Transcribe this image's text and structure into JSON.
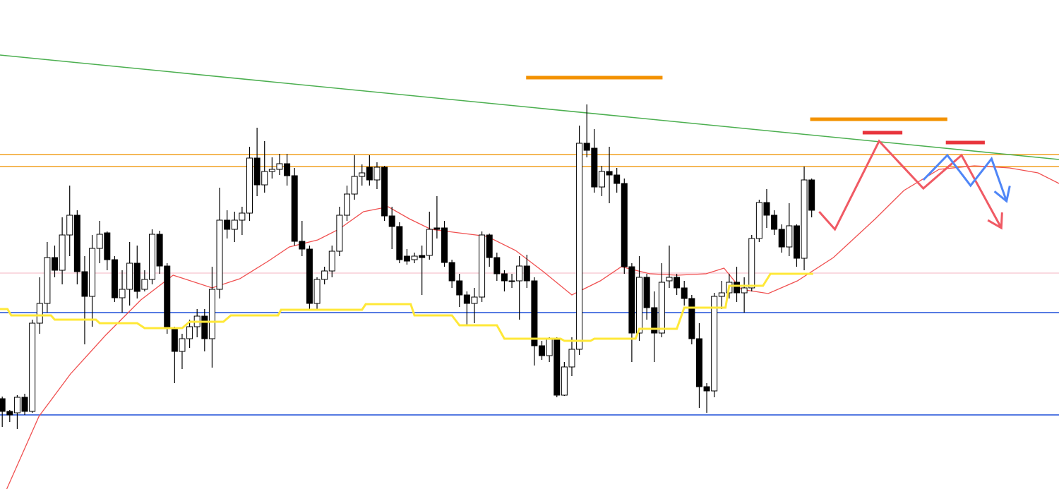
{
  "chart_data": {
    "type": "candlestick",
    "xlim": [
      -0.3,
      141
    ],
    "ylim": [
      0,
      693
    ],
    "up_color": "#ffffff",
    "down_color": "#000000",
    "edge_color": "#000000",
    "open": [
      128,
      110,
      108,
      130,
      110,
      235,
      263,
      328,
      310,
      360,
      388,
      308,
      273,
      341,
      363,
      325,
      271,
      283,
      320,
      283,
      297,
      361,
      316,
      227,
      195,
      213,
      230,
      245,
      213,
      283,
      381,
      368,
      381,
      391,
      469,
      431,
      450,
      453,
      461,
      444,
      351,
      340,
      263,
      297,
      309,
      337,
      388,
      418,
      443,
      456,
      438,
      456,
      387,
      372,
      330,
      325,
      331,
      331,
      370,
      370,
      321,
      295,
      275,
      263,
      272,
      360,
      328,
      305,
      294,
      295,
      316,
      295,
      203,
      189,
      213,
      133,
      173,
      198,
      490,
      483,
      428,
      450,
      445,
      433,
      315,
      221,
      300,
      257,
      221,
      295,
      300,
      285,
      270,
      213,
      145,
      139,
      273,
      278,
      293,
      278,
      285,
      355,
      406,
      388,
      368,
      343,
      373,
      327,
      438
    ],
    "high": [
      131,
      112,
      133,
      135,
      240,
      300,
      350,
      345,
      385,
      430,
      395,
      330,
      360,
      380,
      365,
      330,
      310,
      350,
      345,
      310,
      368,
      366,
      320,
      230,
      220,
      240,
      255,
      255,
      315,
      427,
      395,
      393,
      400,
      485,
      512,
      493,
      470,
      475,
      475,
      455,
      380,
      345,
      300,
      315,
      345,
      400,
      430,
      473,
      460,
      473,
      463,
      458,
      400,
      378,
      340,
      335,
      345,
      393,
      415,
      380,
      325,
      305,
      280,
      285,
      365,
      362,
      335,
      310,
      305,
      330,
      332,
      300,
      210,
      215,
      215,
      180,
      215,
      515,
      545,
      510,
      458,
      485,
      455,
      440,
      320,
      330,
      305,
      280,
      320,
      345,
      305,
      295,
      275,
      235,
      150,
      278,
      295,
      305,
      315,
      300,
      360,
      410,
      425,
      395,
      375,
      405,
      375,
      457,
      440
    ],
    "low": [
      88,
      95,
      85,
      105,
      108,
      220,
      250,
      300,
      290,
      330,
      290,
      205,
      230,
      320,
      310,
      265,
      250,
      260,
      270,
      280,
      290,
      305,
      220,
      150,
      170,
      200,
      215,
      195,
      172,
      270,
      355,
      350,
      360,
      380,
      415,
      420,
      440,
      445,
      430,
      345,
      330,
      255,
      255,
      290,
      300,
      330,
      380,
      410,
      430,
      430,
      425,
      380,
      340,
      320,
      318,
      320,
      275,
      325,
      355,
      315,
      285,
      258,
      233,
      235,
      265,
      315,
      295,
      280,
      285,
      240,
      285,
      175,
      183,
      180,
      130,
      132,
      160,
      190,
      470,
      420,
      415,
      405,
      420,
      305,
      180,
      210,
      240,
      180,
      215,
      285,
      275,
      260,
      205,
      115,
      108,
      130,
      255,
      270,
      265,
      250,
      280,
      350,
      370,
      360,
      335,
      330,
      315,
      310,
      385
    ],
    "close": [
      110,
      105,
      130,
      110,
      235,
      263,
      328,
      310,
      360,
      388,
      308,
      273,
      341,
      361,
      325,
      271,
      283,
      320,
      280,
      297,
      361,
      316,
      227,
      195,
      213,
      230,
      245,
      213,
      283,
      381,
      368,
      381,
      391,
      469,
      431,
      450,
      453,
      461,
      444,
      351,
      340,
      263,
      297,
      309,
      337,
      388,
      418,
      443,
      448,
      438,
      456,
      387,
      372,
      325,
      323,
      330,
      328,
      368,
      368,
      321,
      295,
      275,
      263,
      272,
      360,
      328,
      305,
      295,
      295,
      316,
      295,
      203,
      189,
      213,
      133,
      173,
      198,
      490,
      480,
      428,
      450,
      445,
      433,
      315,
      221,
      300,
      257,
      221,
      293,
      300,
      285,
      270,
      213,
      145,
      139,
      273,
      278,
      293,
      278,
      285,
      355,
      406,
      388,
      368,
      343,
      373,
      327,
      438,
      395
    ],
    "levels": [
      {
        "value": 474,
        "color": "#f0a020",
        "width": 1.5
      },
      {
        "value": 457,
        "color": "#f0a020",
        "width": 1.5
      },
      {
        "value": 306,
        "color": "#f4b6c2",
        "width": 1
      },
      {
        "value": 250,
        "color": "#1f4fd8",
        "width": 1.5
      },
      {
        "value": 105,
        "color": "#1f4fd8",
        "width": 1.5
      }
    ],
    "overlays": [
      {
        "x": [
          -0.3,
          141
        ],
        "values": [
          615,
          467
        ],
        "color": "#4caf50",
        "width": 1.5
      },
      {
        "x": [
          0.6,
          4.9,
          9.1,
          13.8,
          18.5,
          22.8,
          28,
          31.7,
          35.5,
          38.3,
          42.1,
          44.9,
          48.2,
          51.5,
          54.3,
          57.2,
          60.9,
          64.7,
          68.5,
          72.2,
          76,
          79.8,
          82.6,
          86.4,
          90.1,
          93.9,
          96.3,
          98.6,
          102.2,
          106.1,
          110.9,
          116.5,
          120.3,
          125,
          129.7,
          134.4,
          138.2,
          141
        ],
        "values": [
          0,
          103,
          163,
          218,
          268,
          303,
          285,
          298,
          323,
          343,
          353,
          368,
          393,
          400,
          383,
          368,
          363,
          358,
          338,
          308,
          275,
          295,
          315,
          305,
          303,
          305,
          313,
          283,
          277,
          295,
          328,
          383,
          423,
          453,
          458,
          455,
          448,
          433
        ],
        "color": "#f05050",
        "width": 1.3
      },
      {
        "x": [
          -0.3,
          0.7,
          1.2,
          6.5,
          7,
          12.5,
          13,
          18,
          19,
          24,
          25,
          29.5,
          30.5,
          36.8,
          37.2,
          48,
          48.5,
          54.5,
          55,
          60,
          61,
          66,
          67,
          74.5,
          75,
          78.5,
          79,
          84.5,
          85,
          90,
          91,
          96.5,
          97,
          101.5,
          102.5,
          108.2
        ],
        "values": [
          255,
          255,
          246,
          246,
          240,
          240,
          235,
          235,
          228,
          228,
          237,
          237,
          246,
          246,
          254,
          254,
          262,
          262,
          246,
          246,
          232,
          232,
          213,
          213,
          210,
          210,
          213,
          213,
          227,
          227,
          257,
          257,
          288,
          288,
          305,
          305
        ],
        "color": "#ffe838",
        "width": 3
      },
      {
        "x": [
          69.9,
          88.1
        ],
        "values": [
          583,
          583
        ],
        "color": "#f39200",
        "width": 5
      },
      {
        "x": [
          107.8,
          126.1
        ],
        "values": [
          524,
          524
        ],
        "color": "#f39200",
        "width": 5
      },
      {
        "x": [
          114.8,
          120.1
        ],
        "values": [
          505,
          505
        ],
        "color": "#e8343c",
        "width": 5
      },
      {
        "x": [
          125.9,
          131.1
        ],
        "values": [
          491,
          491
        ],
        "color": "#e8343c",
        "width": 5
      },
      {
        "x": [
          109,
          111.1,
          117,
          122.9,
          128,
          133.3
        ],
        "values": [
          393,
          368,
          493,
          426,
          473,
          370
        ],
        "color": "#f05a64",
        "width": 3,
        "arrow": true
      },
      {
        "x": [
          122.9,
          126.1,
          129.2,
          132,
          134
        ],
        "values": [
          438,
          473,
          430,
          468,
          408
        ],
        "color": "#4f86f7",
        "width": 3,
        "arrow": true
      }
    ]
  }
}
